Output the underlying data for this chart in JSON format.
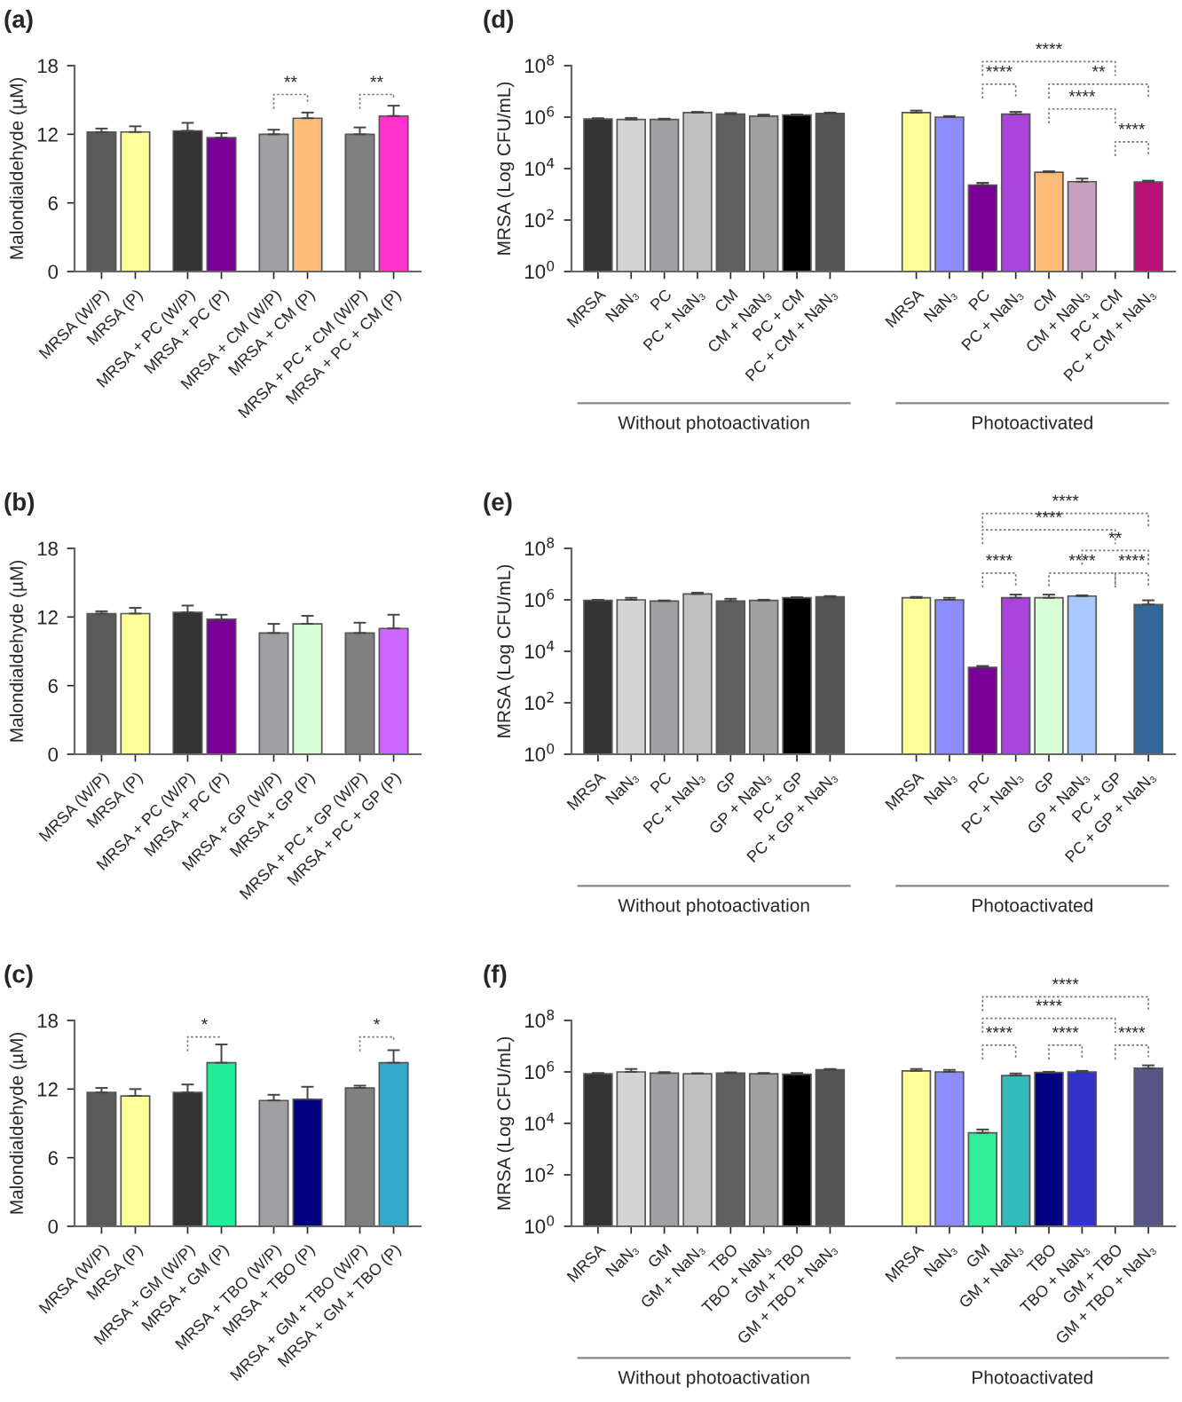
{
  "chart_data": [
    {
      "type": "bar",
      "title": "(a)",
      "ylabel": "Malondialdehyde (µM)",
      "categories": [
        "MRSA (W/P)",
        "MRSA (P)",
        "MRSA + PC (W/P)",
        "MRSA + PC (P)",
        "MRSA + CM (W/P)",
        "MRSA + CM (P)",
        "MRSA + PC + CM (W/P)",
        "MRSA + PC + CM (P)"
      ],
      "values": [
        12.2,
        12.2,
        12.3,
        11.7,
        12.0,
        13.4,
        12.0,
        13.6
      ],
      "errors": [
        0.3,
        0.5,
        0.7,
        0.4,
        0.4,
        0.5,
        0.6,
        0.9
      ],
      "colors": [
        "#5a5a5a",
        "#ffff99",
        "#333333",
        "#780096",
        "#a0a0a4",
        "#ffbb77",
        "#808080",
        "#ff33cc"
      ],
      "ylim": [
        0,
        18
      ],
      "yticks": [
        0,
        6,
        12,
        18
      ],
      "annotations": [
        "**",
        "**"
      ]
    },
    {
      "type": "bar",
      "title": "(b)",
      "ylabel": "Malondialdehyde (µM)",
      "categories": [
        "MRSA (W/P)",
        "MRSA (P)",
        "MRSA + PC (W/P)",
        "MRSA + PC (P)",
        "MRSA + GP (W/P)",
        "MRSA + GP (P)",
        "MRSA + PC + GP (W/P)",
        "MRSA + PC + GP (P)"
      ],
      "values": [
        12.3,
        12.3,
        12.4,
        11.8,
        10.6,
        11.4,
        10.6,
        11.0
      ],
      "errors": [
        0.2,
        0.5,
        0.6,
        0.4,
        0.8,
        0.7,
        0.9,
        1.2
      ],
      "colors": [
        "#5a5a5a",
        "#ffff99",
        "#333333",
        "#780096",
        "#a0a0a4",
        "#d9ffd9",
        "#808080",
        "#cc66ff"
      ],
      "ylim": [
        0,
        18
      ],
      "yticks": [
        0,
        6,
        12,
        18
      ]
    },
    {
      "type": "bar",
      "title": "(c)",
      "ylabel": "Malondialdehyde (µM)",
      "categories": [
        "MRSA (W/P)",
        "MRSA (P)",
        "MRSA + GM (W/P)",
        "MRSA + GM (P)",
        "MRSA + TBO (W/P)",
        "MRSA + TBO (P)",
        "MRSA + GM + TBO (W/P)",
        "MRSA + GM + TBO (P)"
      ],
      "values": [
        11.7,
        11.4,
        11.7,
        14.3,
        11.0,
        11.1,
        12.1,
        14.3
      ],
      "errors": [
        0.4,
        0.6,
        0.7,
        1.6,
        0.5,
        1.1,
        0.2,
        1.1
      ],
      "colors": [
        "#5a5a5a",
        "#ffff99",
        "#333333",
        "#22ee99",
        "#a0a0a4",
        "#000080",
        "#808080",
        "#33aacc"
      ],
      "ylim": [
        0,
        18
      ],
      "yticks": [
        0,
        6,
        12,
        18
      ],
      "annotations": [
        "*",
        "*"
      ]
    },
    {
      "type": "bar",
      "title": "(d)",
      "ylabel": "MRSA (Log CFU/mL)",
      "log": true,
      "categories": [
        "MRSA",
        "NaN₃",
        "PC",
        "PC + NaN₃",
        "CM",
        "CM + NaN₃",
        "PC + CM",
        "PC + CM + NaN₃",
        "MRSA",
        "NaN₃",
        "PC",
        "PC + NaN₃",
        "CM",
        "CM + NaN₃",
        "PC + CM",
        "PC + CM + NaN₃"
      ],
      "values": [
        850000,
        810000,
        810000,
        1500000,
        1300000,
        1100000,
        1200000,
        1400000,
        1500000,
        1000000,
        2300,
        1300000,
        7200,
        3100,
        null,
        3000
      ],
      "errors": [
        60000,
        120000,
        60000,
        100000,
        150000,
        150000,
        60000,
        100000,
        300000,
        100000,
        500,
        300000,
        700,
        1000,
        null,
        400
      ],
      "colors": [
        "#333333",
        "#d4d4d4",
        "#a0a0a4",
        "#c0c0c0",
        "#606060",
        "#a0a0a0",
        "#000000",
        "#555555",
        "#ffff99",
        "#8c8cff",
        "#780096",
        "#aa44dd",
        "#ffbb77",
        "#c8a0c0",
        "#ffbb77",
        "#bb1177"
      ],
      "ylim": [
        1,
        100000000
      ],
      "yticks": [
        {
          "value": 1,
          "label": "10$^{0}$"
        },
        {
          "value": 100,
          "label": "10$^{2}$"
        },
        {
          "value": 10000,
          "label": "10$^{4}$"
        },
        {
          "value": 1000000,
          "label": "10$^{6}$"
        },
        {
          "value": 100000000,
          "label": "10$^{8}$"
        }
      ],
      "annotations": [
        "Without photoactivation",
        "Photoactivated",
        "****",
        "****",
        "**",
        "****",
        "****"
      ]
    },
    {
      "type": "bar",
      "title": "(e)",
      "ylabel": "MRSA (Log CFU/mL)",
      "log": true,
      "categories": [
        "MRSA",
        "NaN₃",
        "PC",
        "PC + NaN₃",
        "GP",
        "GP + NaN₃",
        "PC + GP",
        "PC + GP + NaN₃",
        "MRSA",
        "NaN₃",
        "PC",
        "PC + NaN₃",
        "GP",
        "GP + NaN₃",
        "PC + GP",
        "PC + GP + NaN₃"
      ],
      "values": [
        950000,
        1000000,
        900000,
        1700000,
        900000,
        950000,
        1200000,
        1300000,
        1200000,
        1000000,
        2400,
        1200000,
        1200000,
        1400000,
        null,
        660000
      ],
      "errors": [
        50000,
        200000,
        50000,
        200000,
        200000,
        60000,
        60000,
        100000,
        100000,
        200000,
        300,
        400000,
        400000,
        100000,
        null,
        300000
      ],
      "colors": [
        "#333333",
        "#d4d4d4",
        "#a0a0a4",
        "#c0c0c0",
        "#606060",
        "#a0a0a0",
        "#000000",
        "#555555",
        "#ffff99",
        "#8c8cff",
        "#780096",
        "#aa44dd",
        "#d9ffd9",
        "#a8c8ff",
        "#cccccc",
        "#336699"
      ],
      "ylim": [
        1,
        100000000
      ],
      "yticks": [
        {
          "value": 1,
          "label": "10$^{0}$"
        },
        {
          "value": 100,
          "label": "10$^{2}$"
        },
        {
          "value": 10000,
          "label": "10$^{4}$"
        },
        {
          "value": 1000000,
          "label": "10$^{6}$"
        },
        {
          "value": 100000000,
          "label": "10$^{8}$"
        }
      ],
      "annotations": [
        "Without photoactivation",
        "Photoactivated",
        "****",
        "****",
        "**",
        "****",
        "****",
        "****"
      ]
    },
    {
      "type": "bar",
      "title": "(f)",
      "ylabel": "MRSA (Log CFU/mL)",
      "log": true,
      "categories": [
        "MRSA",
        "NaN₃",
        "GM",
        "GM + NaN₃",
        "TBO",
        "TBO + NaN₃",
        "GM + TBO",
        "GM + TBO + NaN₃",
        "MRSA",
        "NaN₃",
        "GM",
        "GM + NaN₃",
        "TBO",
        "TBO + NaN₃",
        "GM + TBO",
        "GM + TBO + NaN₃"
      ],
      "values": [
        850000,
        1000000,
        900000,
        850000,
        900000,
        850000,
        810000,
        1200000,
        1100000,
        1000000,
        4300,
        720000,
        950000,
        1000000,
        null,
        1400000
      ],
      "errors": [
        60000,
        300000,
        80000,
        40000,
        60000,
        60000,
        100000,
        100000,
        200000,
        200000,
        1500,
        150000,
        60000,
        100000,
        null,
        400000
      ],
      "colors": [
        "#333333",
        "#d4d4d4",
        "#a0a0a4",
        "#c0c0c0",
        "#606060",
        "#a0a0a0",
        "#000000",
        "#555555",
        "#ffff99",
        "#8c8cff",
        "#33ee99",
        "#33bbbb",
        "#000080",
        "#3333cc",
        "#888888",
        "#555588"
      ],
      "ylim": [
        1,
        100000000
      ],
      "yticks": [
        {
          "value": 1,
          "label": "10$^{0}$"
        },
        {
          "value": 100,
          "label": "10$^{2}$"
        },
        {
          "value": 10000,
          "label": "10$^{4}$"
        },
        {
          "value": 1000000,
          "label": "10$^{6}$"
        },
        {
          "value": 100000000,
          "label": "10$^{8}$"
        }
      ],
      "annotations": [
        "Without photoactivation",
        "Photoactivated",
        "****",
        "****",
        "****",
        "****",
        "****"
      ]
    }
  ]
}
